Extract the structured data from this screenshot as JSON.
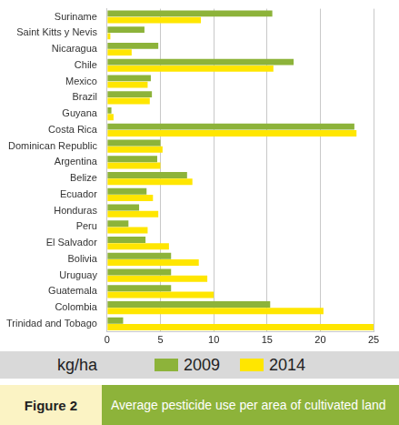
{
  "chart_data": {
    "type": "bar",
    "orientation": "horizontal",
    "title": "Average pesticide use per area of cultivated land",
    "annotations": [
      "Figure 2"
    ],
    "x_label": "kg/ha",
    "categories": [
      "Suriname",
      "Saint Kitts y Nevis",
      "Nicaragua",
      "Chile",
      "Mexico",
      "Brazil",
      "Guyana",
      "Costa Rica",
      "Dominican Republic",
      "Argentina",
      "Belize",
      "Ecuador",
      "Honduras",
      "Peru",
      "El Salvador",
      "Bolivia",
      "Uruguay",
      "Guatemala",
      "Colombia",
      "Trinidad and Tobago"
    ],
    "series": [
      {
        "name": "2009",
        "color": "#8db33a",
        "values": [
          15.5,
          3.5,
          4.8,
          17.5,
          4.1,
          4.2,
          0.4,
          23.2,
          5.0,
          4.7,
          7.5,
          3.7,
          3.0,
          2.0,
          3.6,
          6.0,
          6.0,
          6.0,
          15.3,
          1.5
        ]
      },
      {
        "name": "2014",
        "color": "#ffe600",
        "values": [
          8.8,
          0.3,
          2.3,
          15.6,
          3.8,
          4.0,
          0.6,
          23.4,
          5.2,
          5.0,
          8.0,
          4.3,
          4.8,
          3.8,
          5.8,
          8.6,
          9.4,
          10.0,
          20.3,
          25.0
        ]
      }
    ],
    "xlim": [
      0,
      25
    ],
    "xticks": [
      0,
      5,
      10,
      15,
      20,
      25
    ],
    "grid": true,
    "legend": "bottom"
  }
}
